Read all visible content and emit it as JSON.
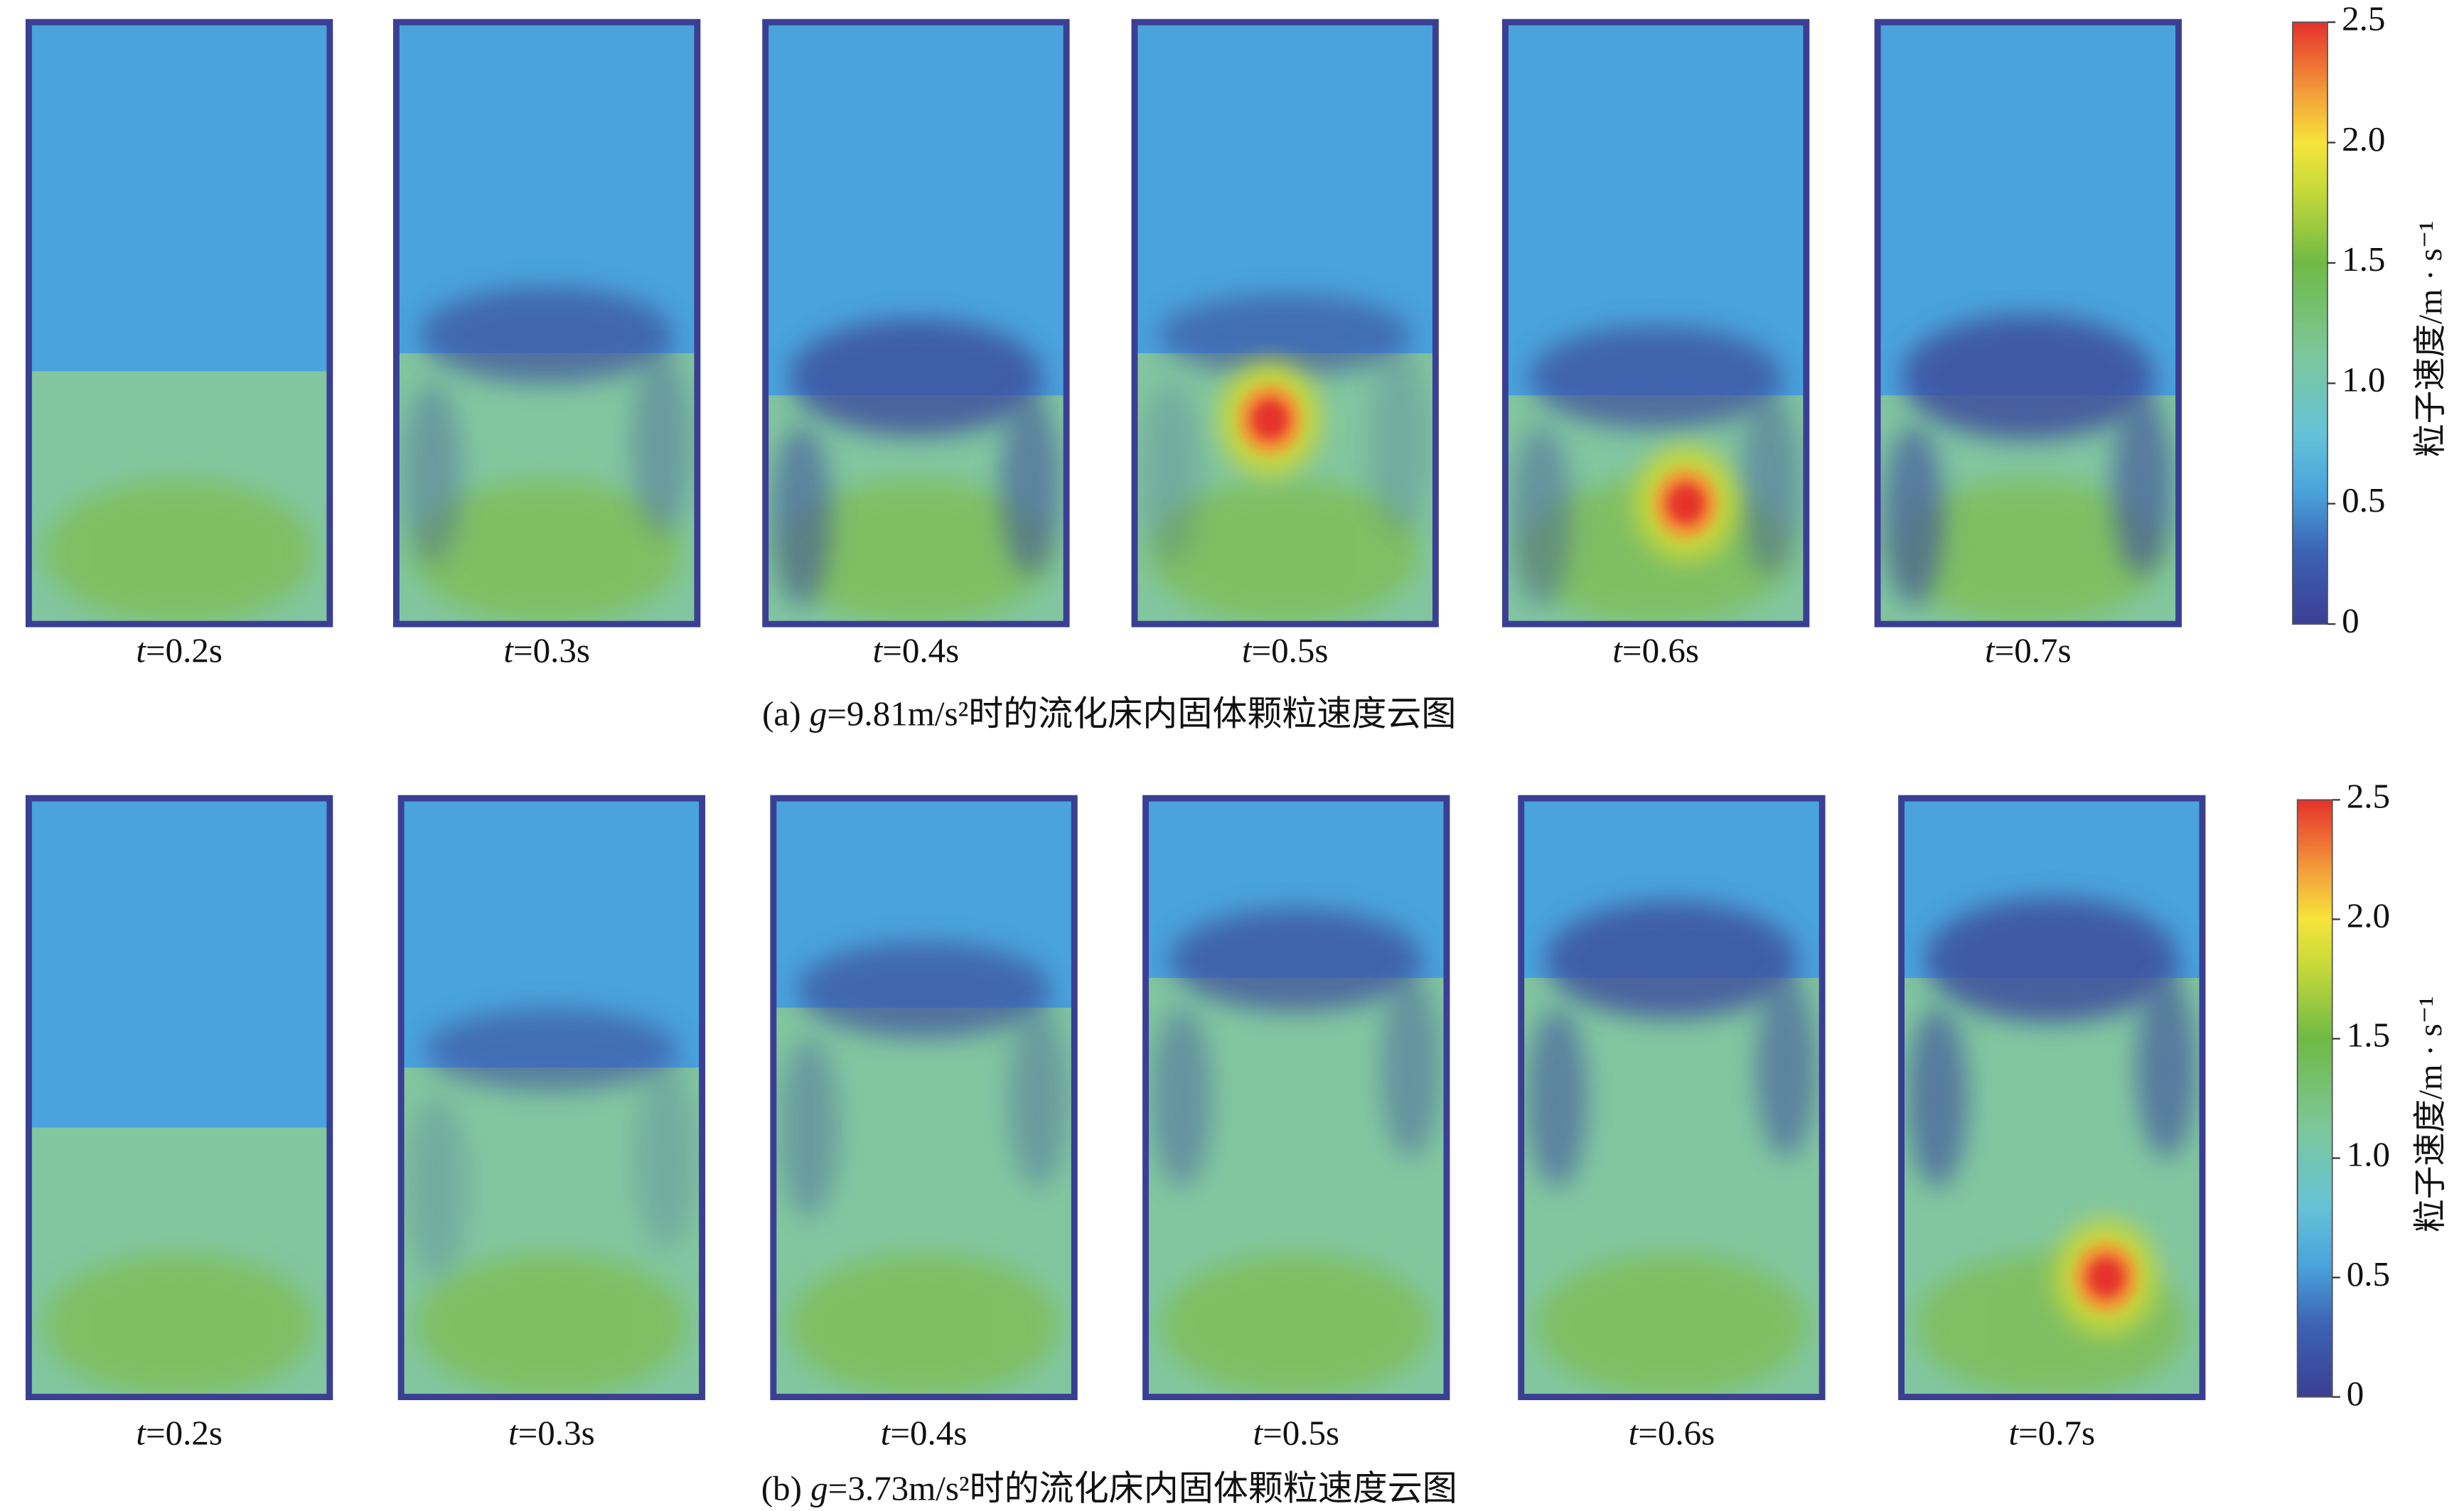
{
  "panels": [
    {
      "caption": {
        "prefix": "(a) ",
        "var": "g",
        "rest": "=9.81m/s²时的流化床内固体颗粒速度云图"
      },
      "frames": [
        {
          "var": "t",
          "text": "=0.2s"
        },
        {
          "var": "t",
          "text": "=0.3s"
        },
        {
          "var": "t",
          "text": "=0.4s"
        },
        {
          "var": "t",
          "text": "=0.5s"
        },
        {
          "var": "t",
          "text": "=0.6s"
        },
        {
          "var": "t",
          "text": "=0.7s"
        }
      ],
      "colorbar": {
        "title": "粒子速度/m · s⁻¹",
        "range": [
          0,
          2.5
        ],
        "ticks": [
          0,
          0.5,
          {
            "value": 1,
            "label": "1.0"
          },
          1.5,
          {
            "value": 2,
            "label": "2.0"
          },
          2.5
        ]
      }
    },
    {
      "caption": {
        "prefix": "(b) ",
        "var": "g",
        "rest": "=3.73m/s²时的流化床内固体颗粒速度云图"
      },
      "frames": [
        {
          "var": "t",
          "text": "=0.2s"
        },
        {
          "var": "t",
          "text": "=0.3s"
        },
        {
          "var": "t",
          "text": "=0.4s"
        },
        {
          "var": "t",
          "text": "=0.5s"
        },
        {
          "var": "t",
          "text": "=0.6s"
        },
        {
          "var": "t",
          "text": "=0.7s"
        }
      ],
      "colorbar": {
        "title": "粒子速度/m · s⁻¹",
        "range": [
          0,
          2.5
        ],
        "ticks": [
          0,
          0.5,
          {
            "value": 1,
            "label": "1.0"
          },
          1.5,
          {
            "value": 2,
            "label": "2.0"
          },
          2.5
        ]
      }
    }
  ]
}
